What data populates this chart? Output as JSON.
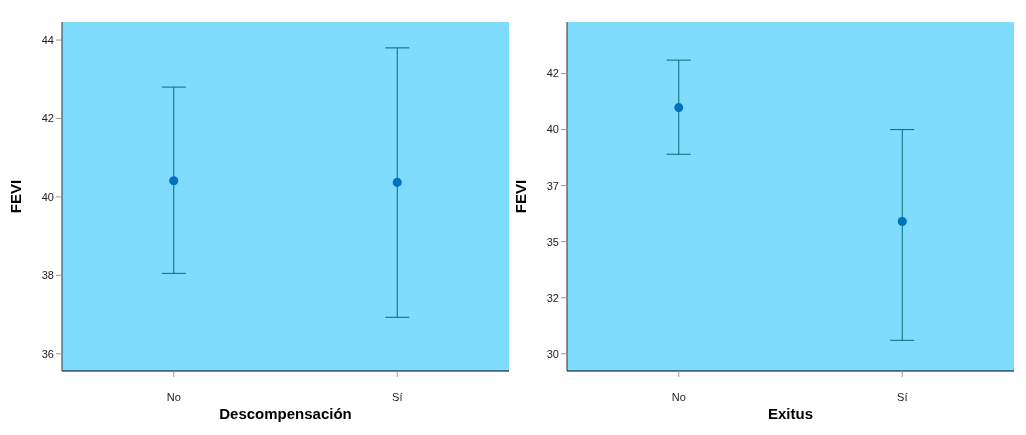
{
  "chart_data": [
    {
      "type": "scatter",
      "xlabel": "Descompensación",
      "ylabel": "FEVI",
      "categories": [
        "No",
        "Sí"
      ],
      "color": "#0070c0",
      "marker": "circle",
      "grid": false,
      "values": [
        40.41,
        40.37
      ],
      "errors": [
        [
          38.05,
          42.8
        ],
        [
          36.93,
          43.8
        ]
      ],
      "ylim": [
        35.56,
        44.46
      ],
      "yticks": [
        36,
        38,
        40,
        42,
        44
      ]
    },
    {
      "type": "scatter",
      "xlabel": "Exitus",
      "ylabel": "FEVI",
      "categories": [
        "No",
        "Sí"
      ],
      "color": "#0070c0",
      "marker": "circle",
      "grid": false,
      "values": [
        40.98,
        35.9
      ],
      "errors": [
        [
          38.9,
          43.1
        ],
        [
          30.6,
          40.0
        ]
      ],
      "ylim": [
        29.23,
        44.8
      ],
      "yticks": [
        {
          "value": 30,
          "label": "30"
        },
        {
          "value": 32.5,
          "label": "32"
        },
        {
          "value": 35,
          "label": "35"
        },
        {
          "value": 37.5,
          "label": "37"
        },
        {
          "value": 40,
          "label": "40"
        },
        {
          "value": 42.5,
          "label": "42"
        }
      ]
    }
  ]
}
